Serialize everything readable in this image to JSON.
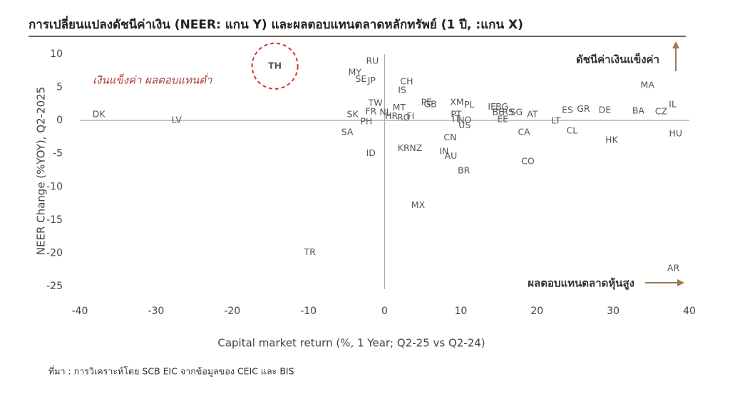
{
  "chart_data": {
    "type": "scatter",
    "title": "การเปลี่ยนแปลงดัชนีค่าเงิน (NEER: แกน Y) และผลตอบแทนตลาดหลักทรัพย์ (1 ปี, :แกน X)",
    "x_label": "Capital market return (%, 1 Year; Q2-25 vs Q2-24)",
    "y_label": "NEER Change (%YOY), Q2-2025",
    "source": "ที่มา : การวิเคราะห์โดย SCB EIC จากข้อมูลของ CEIC และ BIS",
    "annotations": [
      "เงินแข็งค่า ผลตอบแทนต่ำ",
      "ดัชนีค่าเงินแข็งค่า",
      "ผลตอบแทนตลาดหุ้นสูง"
    ],
    "highlight": "TH",
    "xlim": [
      -40,
      40
    ],
    "xticks": [
      -40,
      -30,
      -20,
      -10,
      0,
      10,
      20,
      30,
      40
    ],
    "ylim": [
      -25,
      10
    ],
    "yticks": [
      10,
      5,
      0,
      -5,
      -10,
      -15,
      -20,
      -25
    ],
    "points": [
      {
        "label": "TH",
        "x": -14.4,
        "y": 8.2
      },
      {
        "label": "RU",
        "x": -1.6,
        "y": 8.9
      },
      {
        "label": "MY",
        "x": -3.9,
        "y": 7.2
      },
      {
        "label": "SE",
        "x": -3.1,
        "y": 6.2
      },
      {
        "label": "JP",
        "x": -1.7,
        "y": 6.0
      },
      {
        "label": "CH",
        "x": 2.9,
        "y": 5.8
      },
      {
        "label": "IS",
        "x": 2.3,
        "y": 4.5
      },
      {
        "label": "TW",
        "x": -1.2,
        "y": 2.6
      },
      {
        "label": "MT",
        "x": 1.9,
        "y": 1.9
      },
      {
        "label": "FR",
        "x": -1.8,
        "y": 1.3
      },
      {
        "label": "NL",
        "x": 0.1,
        "y": 1.2
      },
      {
        "label": "HR",
        "x": 0.9,
        "y": 0.6
      },
      {
        "label": "RO",
        "x": 2.5,
        "y": 0.4
      },
      {
        "label": "FI",
        "x": 3.4,
        "y": 0.6
      },
      {
        "label": "SK",
        "x": -4.2,
        "y": 0.9
      },
      {
        "label": "PH",
        "x": -2.4,
        "y": -0.2
      },
      {
        "label": "SA",
        "x": -4.9,
        "y": -1.8
      },
      {
        "label": "ID",
        "x": -1.8,
        "y": -5.0
      },
      {
        "label": "KR",
        "x": 2.5,
        "y": -4.2
      },
      {
        "label": "NZ",
        "x": 4.1,
        "y": -4.2
      },
      {
        "label": "PE",
        "x": 5.5,
        "y": 2.7
      },
      {
        "label": "GB",
        "x": 6.0,
        "y": 2.4
      },
      {
        "label": "XM",
        "x": 9.5,
        "y": 2.7
      },
      {
        "label": "PL",
        "x": 11.1,
        "y": 2.3
      },
      {
        "label": "PT",
        "x": 9.4,
        "y": 0.9
      },
      {
        "label": "IT",
        "x": 9.4,
        "y": 0.2
      },
      {
        "label": "NO",
        "x": 10.5,
        "y": 0.0
      },
      {
        "label": "US",
        "x": 10.5,
        "y": -0.8
      },
      {
        "label": "CN",
        "x": 8.6,
        "y": -2.6
      },
      {
        "label": "IN",
        "x": 7.8,
        "y": -4.7
      },
      {
        "label": "AU",
        "x": 8.7,
        "y": -5.4
      },
      {
        "label": "BR",
        "x": 10.4,
        "y": -7.6
      },
      {
        "label": "MX",
        "x": 4.4,
        "y": -12.8
      },
      {
        "label": "TR",
        "x": -9.8,
        "y": -19.9
      },
      {
        "label": "DK",
        "x": -37.5,
        "y": 0.9
      },
      {
        "label": "LV",
        "x": -27.3,
        "y": 0.0
      },
      {
        "label": "IE",
        "x": 14.1,
        "y": 2.0
      },
      {
        "label": "BG",
        "x": 15.4,
        "y": 2.0
      },
      {
        "label": "BE",
        "x": 14.9,
        "y": 1.2
      },
      {
        "label": "RS",
        "x": 16.2,
        "y": 1.2
      },
      {
        "label": "SG",
        "x": 17.3,
        "y": 1.2
      },
      {
        "label": "EE",
        "x": 15.5,
        "y": 0.1
      },
      {
        "label": "AT",
        "x": 19.4,
        "y": 0.9
      },
      {
        "label": "LT",
        "x": 22.5,
        "y": -0.1
      },
      {
        "label": "CA",
        "x": 18.3,
        "y": -1.8
      },
      {
        "label": "CO",
        "x": 18.8,
        "y": -6.2
      },
      {
        "label": "ES",
        "x": 24.0,
        "y": 1.5
      },
      {
        "label": "GR",
        "x": 26.1,
        "y": 1.7
      },
      {
        "label": "CL",
        "x": 24.6,
        "y": -1.6
      },
      {
        "label": "DE",
        "x": 28.9,
        "y": 1.5
      },
      {
        "label": "HK",
        "x": 29.8,
        "y": -3.0
      },
      {
        "label": "BA",
        "x": 33.3,
        "y": 1.4
      },
      {
        "label": "CZ",
        "x": 36.3,
        "y": 1.3
      },
      {
        "label": "MA",
        "x": 34.5,
        "y": 5.3
      },
      {
        "label": "IL",
        "x": 37.8,
        "y": 2.4
      },
      {
        "label": "HU",
        "x": 38.2,
        "y": -2.0
      },
      {
        "label": "AR",
        "x": 37.9,
        "y": -22.3
      }
    ]
  }
}
